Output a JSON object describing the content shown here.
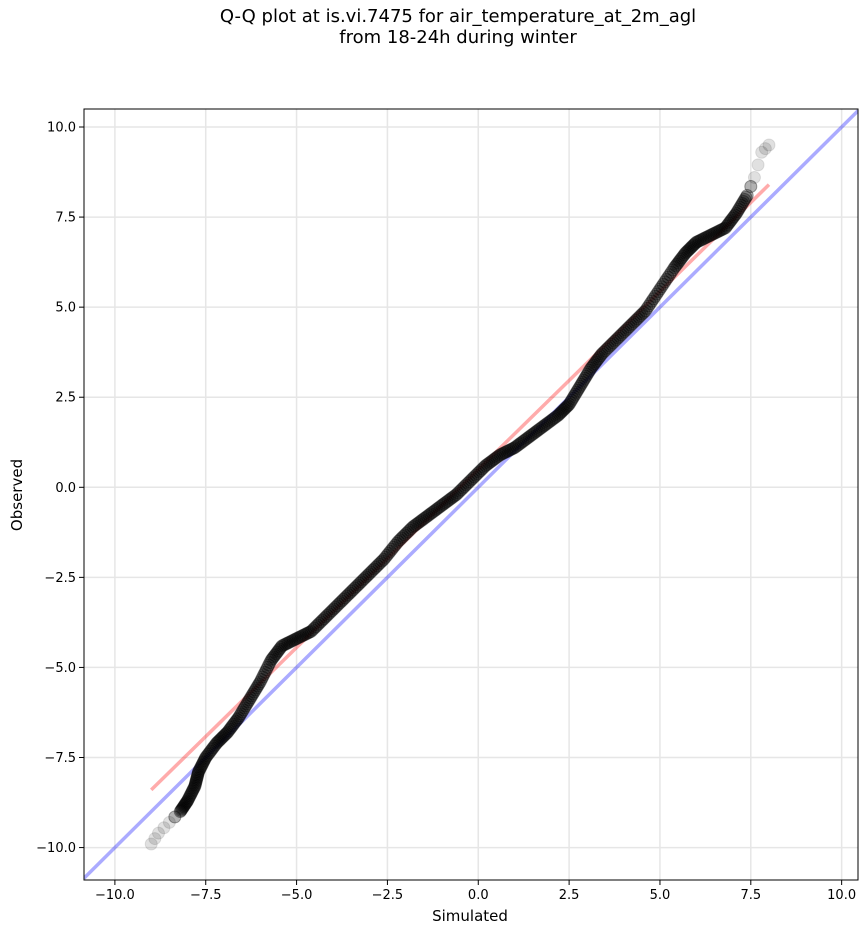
{
  "chart_data": {
    "type": "scatter",
    "title": "Q-Q plot at is.vi.7475 for air_temperature_at_2m_agl",
    "subtitle": "from 18-24h during winter",
    "xlabel": "Simulated",
    "ylabel": "Observed",
    "xlim": [
      -10.85,
      10.45
    ],
    "ylim": [
      -10.9,
      10.5
    ],
    "x_ticks": [
      -10.0,
      -7.5,
      -5.0,
      -2.5,
      0.0,
      2.5,
      5.0,
      7.5,
      10.0
    ],
    "y_ticks": [
      -10.0,
      -7.5,
      -5.0,
      -2.5,
      0.0,
      2.5,
      5.0,
      7.5,
      10.0
    ],
    "x_tick_labels": [
      "−10.0",
      "−7.5",
      "−5.0",
      "−2.5",
      "0.0",
      "2.5",
      "5.0",
      "7.5",
      "10.0"
    ],
    "y_tick_labels": [
      "−10.0",
      "−7.5",
      "−5.0",
      "−2.5",
      "0.0",
      "2.5",
      "5.0",
      "7.5",
      "10.0"
    ],
    "grid": true,
    "legend": "none",
    "quantile_curve": [
      [
        -9.0,
        -9.9
      ],
      [
        -8.8,
        -9.6
      ],
      [
        -8.5,
        -9.3
      ],
      [
        -8.2,
        -9.0
      ],
      [
        -8.0,
        -8.7
      ],
      [
        -7.8,
        -8.3
      ],
      [
        -7.7,
        -7.9
      ],
      [
        -7.5,
        -7.5
      ],
      [
        -7.2,
        -7.1
      ],
      [
        -6.9,
        -6.8
      ],
      [
        -6.6,
        -6.4
      ],
      [
        -6.3,
        -5.9
      ],
      [
        -6.0,
        -5.4
      ],
      [
        -5.7,
        -4.8
      ],
      [
        -5.4,
        -4.4
      ],
      [
        -5.0,
        -4.2
      ],
      [
        -4.6,
        -4.0
      ],
      [
        -4.2,
        -3.6
      ],
      [
        -3.8,
        -3.2
      ],
      [
        -3.4,
        -2.8
      ],
      [
        -3.0,
        -2.4
      ],
      [
        -2.6,
        -2.0
      ],
      [
        -2.2,
        -1.5
      ],
      [
        -1.8,
        -1.1
      ],
      [
        -1.4,
        -0.8
      ],
      [
        -1.0,
        -0.5
      ],
      [
        -0.6,
        -0.2
      ],
      [
        -0.2,
        0.2
      ],
      [
        0.2,
        0.6
      ],
      [
        0.6,
        0.9
      ],
      [
        1.0,
        1.1
      ],
      [
        1.4,
        1.4
      ],
      [
        1.8,
        1.7
      ],
      [
        2.2,
        2.0
      ],
      [
        2.5,
        2.3
      ],
      [
        2.8,
        2.8
      ],
      [
        3.1,
        3.3
      ],
      [
        3.4,
        3.7
      ],
      [
        3.8,
        4.1
      ],
      [
        4.2,
        4.5
      ],
      [
        4.6,
        4.9
      ],
      [
        5.0,
        5.5
      ],
      [
        5.4,
        6.1
      ],
      [
        5.7,
        6.5
      ],
      [
        6.0,
        6.8
      ],
      [
        6.4,
        7.0
      ],
      [
        6.8,
        7.2
      ],
      [
        7.1,
        7.6
      ],
      [
        7.4,
        8.1
      ],
      [
        7.6,
        8.6
      ],
      [
        7.8,
        9.3
      ],
      [
        8.0,
        9.5
      ]
    ],
    "reference_lines": {
      "identity": {
        "x": [
          -10.85,
          10.45
        ],
        "y": [
          -10.85,
          10.45
        ],
        "color": "#0000ff"
      },
      "fit": {
        "x": [
          -9.0,
          8.0
        ],
        "y": [
          -8.4,
          8.4
        ],
        "color": "#ff0000"
      }
    }
  }
}
